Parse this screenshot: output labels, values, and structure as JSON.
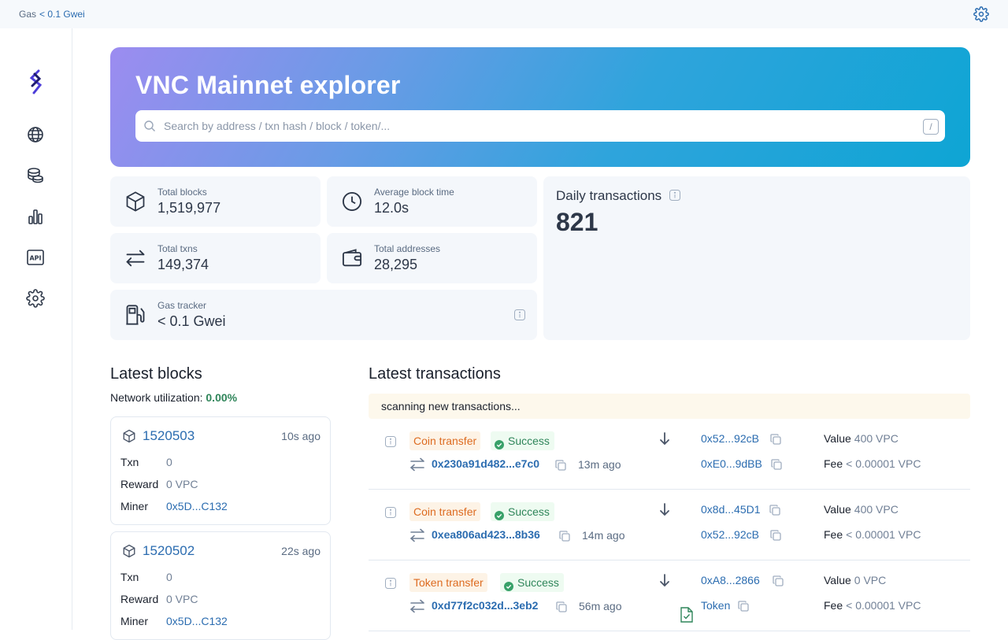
{
  "topbar": {
    "gas_label": "Gas",
    "gas_value": "< 0.1 Gwei"
  },
  "sidebar": {
    "items": [
      "globe-icon",
      "coins-icon",
      "chart-icon",
      "api-icon",
      "gear-icon"
    ]
  },
  "hero": {
    "title": "VNC Mainnet explorer",
    "search_placeholder": "Search by address / txn hash / block / token/...",
    "shortcut": "/"
  },
  "stats": {
    "total_blocks": {
      "label": "Total blocks",
      "value": "1,519,977"
    },
    "avg_block_time": {
      "label": "Average block time",
      "value": "12.0s"
    },
    "total_txns": {
      "label": "Total txns",
      "value": "149,374"
    },
    "total_addresses": {
      "label": "Total addresses",
      "value": "28,295"
    },
    "gas_tracker": {
      "label": "Gas tracker",
      "value": "< 0.1 Gwei"
    }
  },
  "daily": {
    "title": "Daily transactions",
    "value": "821"
  },
  "blocks": {
    "title": "Latest blocks",
    "util_label": "Network utilization:",
    "util_value": "0.00%",
    "items": [
      {
        "number": "1520503",
        "ago": "10s ago",
        "txn_label": "Txn",
        "txn": "0",
        "reward_label": "Reward",
        "reward": "0 VPC",
        "miner_label": "Miner",
        "miner": "0x5D...C132"
      },
      {
        "number": "1520502",
        "ago": "22s ago",
        "txn_label": "Txn",
        "txn": "0",
        "reward_label": "Reward",
        "reward": "0 VPC",
        "miner_label": "Miner",
        "miner": "0x5D...C132"
      }
    ]
  },
  "transactions": {
    "title": "Latest transactions",
    "scanning": "scanning new transactions...",
    "items": [
      {
        "type": "Coin transfer",
        "status": "Success",
        "hash": "0x230a91d482...e7c0",
        "time": "13m ago",
        "from": "0x52...92cB",
        "to": "0xE0...9dBB",
        "value_label": "Value",
        "value": "400 VPC",
        "fee_label": "Fee",
        "fee": "< 0.00001 VPC"
      },
      {
        "type": "Coin transfer",
        "status": "Success",
        "hash": "0xea806ad423...8b36",
        "time": "14m ago",
        "from": "0x8d...45D1",
        "to": "0x52...92cB",
        "value_label": "Value",
        "value": "400 VPC",
        "fee_label": "Fee",
        "fee": "< 0.00001 VPC"
      },
      {
        "type": "Token transfer",
        "status": "Success",
        "hash": "0xd77f2c032d...3eb2",
        "time": "56m ago",
        "from": "0xA8...2866",
        "to": "Token",
        "value_label": "Value",
        "value": "0 VPC",
        "fee_label": "Fee",
        "fee": "< 0.00001 VPC"
      }
    ]
  }
}
